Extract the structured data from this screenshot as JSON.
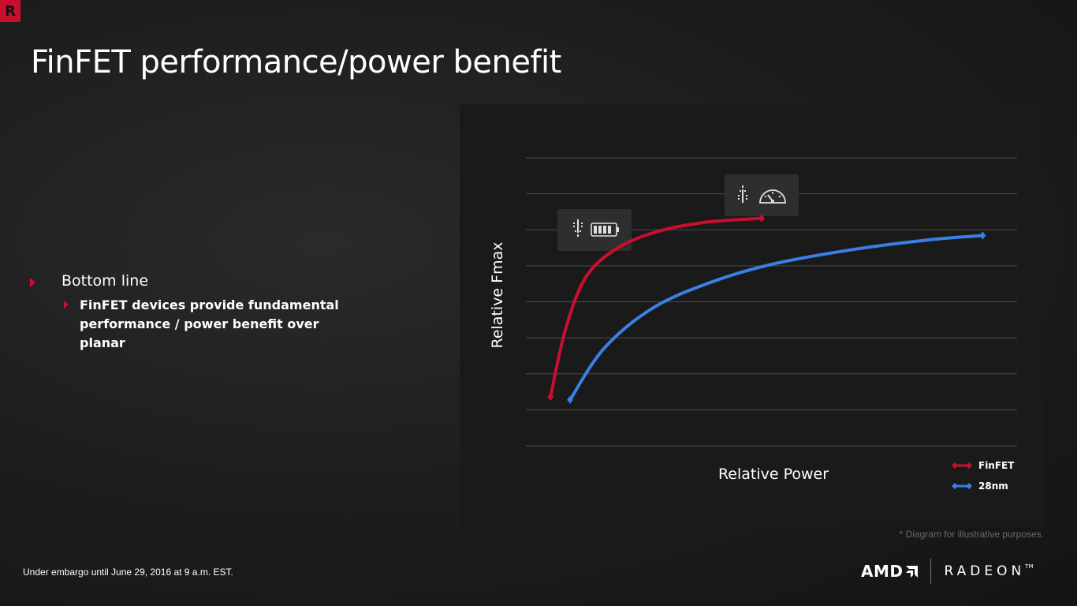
{
  "slide": {
    "corner_logo": "R",
    "title": "FinFET performance/power benefit",
    "bullets": {
      "level1": "Bottom line",
      "level2": "FinFET devices provide fundamental performance / power benefit over planar"
    },
    "footnote": "* Diagram for illustrative purposes.",
    "embargo": "Under embargo until June 29, 2016 at  9 a.m. EST.",
    "brand": {
      "amd": "AMD",
      "radeon": "RADEON",
      "tm": "TM"
    }
  },
  "colors": {
    "finfet": "#c8102e",
    "n28": "#3a7fe6",
    "accent": "#c8102e",
    "panel": "#1a1a1a",
    "grid": "#4a4a4a"
  },
  "icons": {
    "finfet_callout": [
      "arrow-down-icon",
      "battery-icon"
    ],
    "n28_callout": [
      "arrow-up-icon",
      "speedometer-icon"
    ]
  },
  "chart_data": {
    "type": "line",
    "title": "",
    "xlabel": "Relative Power",
    "ylabel": "Relative Fmax",
    "xlim": [
      0,
      100
    ],
    "ylim": [
      0,
      100
    ],
    "grid": true,
    "grid_lines": 9,
    "legend_placement": "bottom-right",
    "annotation": "Diagram for illustrative purposes.",
    "series": [
      {
        "name": "FinFET",
        "color": "#c8102e",
        "points": [
          [
            5,
            17
          ],
          [
            8,
            40
          ],
          [
            12,
            58
          ],
          [
            18,
            68
          ],
          [
            26,
            74
          ],
          [
            36,
            77.5
          ],
          [
            48,
            79
          ]
        ]
      },
      {
        "name": "28nm",
        "color": "#3a7fe6",
        "points": [
          [
            9,
            16
          ],
          [
            16,
            34
          ],
          [
            26,
            48
          ],
          [
            38,
            57
          ],
          [
            50,
            63
          ],
          [
            66,
            68
          ],
          [
            82,
            71.5
          ],
          [
            93,
            73
          ]
        ]
      }
    ]
  }
}
